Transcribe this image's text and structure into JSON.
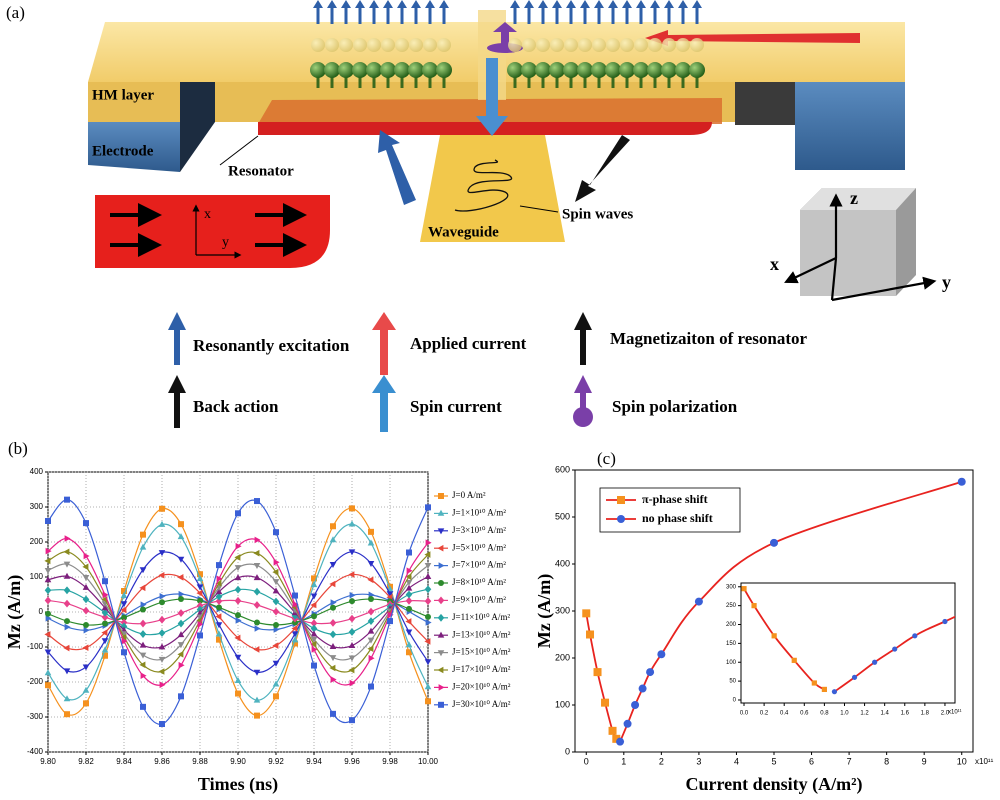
{
  "diagram": {
    "label": "(a)",
    "hm_layer": "HM layer",
    "electrode": "Electrode",
    "resonator": "Resonator",
    "spin_waves": "Spin waves",
    "waveguide": "Waveguide",
    "axes": {
      "x": "x",
      "y": "y",
      "z": "z"
    },
    "inset_axes": {
      "x": "x",
      "y": "y"
    },
    "legend": [
      "Resonantly excitation",
      "Applied current",
      "Magnetizaiton of resonator",
      "Back action",
      "Spin current",
      "Spin polarization"
    ]
  },
  "chart_data": [
    {
      "type": "line",
      "panel_label": "(b)",
      "x_label": "Times (ns)",
      "y_label": "Mz (A/m)",
      "grid": true,
      "legend": "right",
      "xlim": [
        9.8,
        10
      ],
      "ylim": [
        -400,
        400
      ],
      "xticks": [
        {
          "value": 9.8,
          "label": "9.80"
        },
        9.82,
        9.84,
        9.86,
        9.88,
        {
          "value": 9.9,
          "label": "9.90"
        },
        9.92,
        9.94,
        9.96,
        9.98,
        {
          "value": 10,
          "label": "10.00"
        }
      ],
      "yticks": [
        -400,
        -300,
        -200,
        -100,
        0,
        100,
        200,
        300,
        400
      ],
      "x": [
        9.8,
        9.81,
        9.82,
        9.83,
        9.84,
        9.85,
        9.86,
        9.87,
        9.88,
        9.89,
        9.9,
        9.91,
        9.92,
        9.93,
        9.94,
        9.95,
        9.96,
        9.97,
        9.98,
        9.99,
        10
      ],
      "series": [
        {
          "name": "J=0 A/m²",
          "color": "#f5911e",
          "marker": "square",
          "values": [
            -209,
            -292,
            -261,
            -125,
            60,
            221,
            295,
            251,
            108,
            -79,
            -233,
            -296,
            -241,
            -90,
            96,
            245,
            296,
            229,
            72,
            -115,
            -255
          ]
        },
        {
          "name": "J=1×10¹⁰ A/m²",
          "color": "#4fb3bf",
          "marker": "triangle-up",
          "values": [
            -174,
            -248,
            -224,
            -109,
            47,
            185,
            250,
            215,
            95,
            -63,
            -196,
            -252,
            -206,
            -80,
            78,
            206,
            251,
            197,
            65,
            -94,
            -214
          ]
        },
        {
          "name": "J=3×10¹⁰ A/m²",
          "color": "#2a2fc7",
          "marker": "triangle-down",
          "values": [
            -114,
            -168,
            -157,
            -82,
            24,
            121,
            170,
            151,
            72,
            -36,
            -129,
            -172,
            -146,
            -62,
            46,
            136,
            172,
            139,
            52,
            -57,
            -142
          ]
        },
        {
          "name": "J=5×10¹⁰ A/m²",
          "color": "#e8463a",
          "marker": "triangle-left",
          "values": [
            -64,
            -103,
            -102,
            -59,
            6,
            69,
            105,
            99,
            54,
            -13,
            -74,
            -107,
            -96,
            -47,
            20,
            80,
            107,
            92,
            42,
            -27,
            -84
          ]
        },
        {
          "name": "J=7×10¹⁰ A/m²",
          "color": "#3d6fd1",
          "marker": "triangle-right",
          "values": [
            -18,
            -43,
            -52,
            -39,
            -11,
            21,
            45,
            51,
            37,
            8,
            -24,
            -47,
            -50,
            -34,
            -5,
            27,
            48,
            49,
            32,
            1,
            -30
          ]
        },
        {
          "name": "J=8×10¹⁰ A/m²",
          "color": "#2d8a2d",
          "marker": "circle",
          "values": [
            -5,
            -26,
            -37,
            -33,
            -16,
            7,
            28,
            37,
            32,
            13,
            -9,
            -30,
            -37,
            -30,
            -12,
            12,
            31,
            37,
            30,
            9,
            -14
          ]
        },
        {
          "name": "J=9×10¹⁰ A/m²",
          "color": "#e8408a",
          "marker": "diamond",
          "values": [
            33,
            24,
            4,
            -15,
            -30,
            -33,
            -22,
            -3,
            18,
            31,
            32,
            20,
            1,
            -19,
            -32,
            -31,
            -19,
            1,
            22,
            32,
            31
          ]
        },
        {
          "name": "J=11×10¹⁰ A/m²",
          "color": "#26a3a3",
          "marker": "diamond",
          "values": [
            62,
            62,
            36,
            -2,
            -41,
            -63,
            -60,
            -33,
            7,
            44,
            64,
            58,
            30,
            -11,
            -47,
            -64,
            -57,
            -26,
            15,
            50,
            65
          ]
        },
        {
          "name": "J=13×10¹⁰ A/m²",
          "color": "#7d1f7d",
          "marker": "triangle-up",
          "values": [
            92,
            102,
            70,
            12,
            -52,
            -95,
            -100,
            -65,
            -4,
            58,
            98,
            98,
            60,
            -2,
            -63,
            -99,
            -96,
            -55,
            9,
            68,
            101
          ]
        },
        {
          "name": "J=15×10¹⁰ A/m²",
          "color": "#8c8c8c",
          "marker": "triangle-down",
          "values": [
            119,
            137,
            99,
            24,
            -62,
            -123,
            -135,
            -93,
            -14,
            70,
            127,
            133,
            87,
            6,
            -78,
            -130,
            -131,
            -80,
            3,
            85,
            133
          ]
        },
        {
          "name": "J=17×10¹⁰ A/m²",
          "color": "#8a8a1f",
          "marker": "triangle-left",
          "values": [
            146,
            172,
            129,
            36,
            -72,
            -151,
            -170,
            -121,
            -24,
            82,
            156,
            168,
            114,
            14,
            -92,
            -160,
            -166,
            -105,
            -2,
            101,
            164
          ]
        },
        {
          "name": "J=20×10¹⁰ A/m²",
          "color": "#e8208a",
          "marker": "triangle-right",
          "values": [
            174,
            210,
            160,
            49,
            -83,
            -182,
            -208,
            -152,
            -35,
            95,
            188,
            206,
            142,
            22,
            -107,
            -193,
            -203,
            -132,
            -8,
            118,
            198
          ]
        },
        {
          "name": "J=30×10¹⁰ A/m²",
          "color": "#3a5fd6",
          "marker": "square",
          "values": [
            260,
            321,
            254,
            88,
            -115,
            -271,
            -320,
            -241,
            -67,
            134,
            282,
            317,
            228,
            47,
            -153,
            -291,
            -309,
            -213,
            -26,
            170,
            299
          ]
        }
      ]
    },
    {
      "type": "scatter",
      "panel_label": "(c)",
      "x_label": "Current density (A/m²)",
      "y_label": "Mz (A/m)",
      "x_multiplier": "x10¹¹",
      "legend": "upper left",
      "line_color": "#e8231f",
      "xlim": [
        -0.3,
        10.3
      ],
      "ylim": [
        0,
        600
      ],
      "xticks": [
        0,
        1,
        2,
        3,
        4,
        5,
        6,
        7,
        8,
        9,
        10
      ],
      "yticks": [
        0,
        100,
        200,
        300,
        400,
        500,
        600
      ],
      "series": [
        {
          "name": "π-phase shift",
          "color": "#f5911e",
          "marker": "square",
          "x": [
            0,
            0.1,
            0.3,
            0.5,
            0.7,
            0.8
          ],
          "values": [
            295,
            250,
            170,
            105,
            45,
            28
          ]
        },
        {
          "name": "no phase shift",
          "color": "#3a5fd6",
          "marker": "circle",
          "x": [
            0.9,
            1.1,
            1.3,
            1.5,
            1.7,
            2,
            3,
            5,
            10
          ],
          "values": [
            22,
            60,
            100,
            135,
            170,
            208,
            320,
            445,
            575
          ]
        }
      ],
      "inset": {
        "x_multiplier": "x10¹¹",
        "xlim": [
          -0.03,
          2.1
        ],
        "ylim": [
          -8,
          310
        ],
        "xticks": [
          {
            "value": 0,
            "label": "0.0"
          },
          0.2,
          0.4,
          0.6,
          0.8,
          {
            "value": 1,
            "label": "1.0"
          },
          1.2,
          1.4,
          1.6,
          1.8,
          {
            "value": 2,
            "label": "2.0"
          }
        ],
        "yticks": [
          0,
          50,
          100,
          150,
          200,
          250,
          300
        ]
      }
    }
  ]
}
